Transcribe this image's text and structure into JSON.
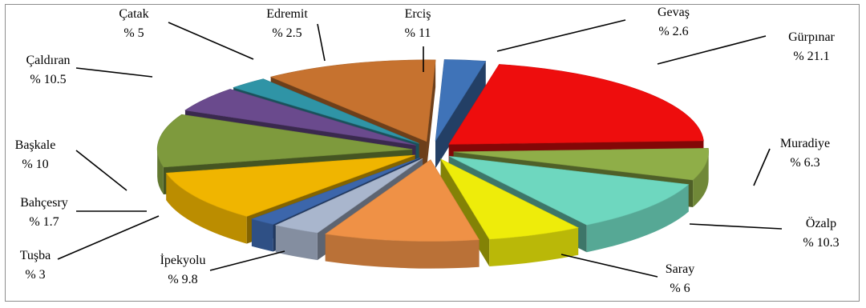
{
  "chart_data": {
    "type": "pie",
    "style": "3d-exploded",
    "legend": "none",
    "slices": [
      {
        "name": "Gevaş",
        "value_label": "% 2.6",
        "value": 2.6,
        "color": "#3f73b8"
      },
      {
        "name": "Gürpınar",
        "value_label": "% 21.1",
        "value": 21.1,
        "color": "#ee0d0d"
      },
      {
        "name": "Muradiye",
        "value_label": "% 6.3",
        "value": 6.3,
        "color": "#8fae48"
      },
      {
        "name": "Özalp",
        "value_label": "% 10.3",
        "value": 10.3,
        "color": "#6ed7bf"
      },
      {
        "name": "Saray",
        "value_label": "% 6",
        "value": 6,
        "color": "#eeec0a"
      },
      {
        "name": "İpekyolu",
        "value_label": "% 9.8",
        "value": 9.8,
        "color": "#ef9146"
      },
      {
        "name": "Tuşba",
        "value_label": "% 3",
        "value": 3,
        "color": "#a9b6cd"
      },
      {
        "name": "Bahçesry",
        "value_label": "% 1.7",
        "value": 1.7,
        "color": "#3c66ab"
      },
      {
        "name": "Başkale",
        "value_label": "% 10",
        "value": 10,
        "color": "#f0b500"
      },
      {
        "name": "Çaldıran",
        "value_label": "% 10.5",
        "value": 10.5,
        "color": "#7e9a3d"
      },
      {
        "name": "Çatak",
        "value_label": "% 5",
        "value": 5,
        "color": "#6a4a8d"
      },
      {
        "name": "Edremit",
        "value_label": "% 2.5",
        "value": 2.5,
        "color": "#2f94a6"
      },
      {
        "name": "Erciş",
        "value_label": "% 11",
        "value": 11,
        "color": "#c6722f"
      }
    ]
  }
}
